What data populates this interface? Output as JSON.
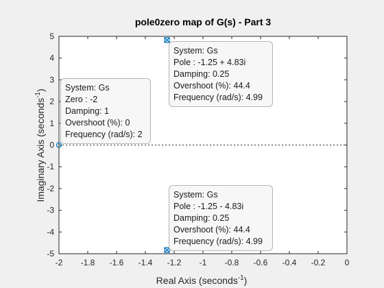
{
  "chart_data": {
    "type": "scatter",
    "title": "pole0zero map of G(s) - Part 3",
    "xlabel_main": "Real Axis (seconds",
    "xlabel_sup": "-1",
    "xlabel_end": ")",
    "ylabel_main": "Imaginary Axis (seconds",
    "ylabel_sup": "-1",
    "ylabel_end": ")",
    "xlim": [
      -2,
      0
    ],
    "ylim": [
      -5,
      5
    ],
    "xticks": [
      -2,
      -1.8,
      -1.6,
      -1.4,
      -1.2,
      -1,
      -0.8,
      -0.6,
      -0.4,
      -0.2,
      0
    ],
    "yticks": [
      -5,
      -4,
      -3,
      -2,
      -1,
      0,
      1,
      2,
      3,
      4,
      5
    ],
    "xtick_labels": [
      "-2",
      "-1.8",
      "-1.6",
      "-1.4",
      "-1.2",
      "-1",
      "-0.8",
      "-0.6",
      "-0.4",
      "-0.2",
      "0"
    ],
    "ytick_labels": [
      "-5",
      "-4",
      "-3",
      "-2",
      "-1",
      "0",
      "1",
      "2",
      "3",
      "4",
      "5"
    ],
    "grid": false,
    "marker_color": "#0072bd",
    "series": [
      {
        "kind": "pole",
        "points": [
          {
            "x": -1.25,
            "y": 4.83
          },
          {
            "x": -1.25,
            "y": -4.83
          }
        ]
      },
      {
        "kind": "zero",
        "points": [
          {
            "x": -2,
            "y": 0
          }
        ]
      }
    ],
    "datatips": [
      {
        "lines": [
          "System: Gs",
          "Pole : -1.25 + 4.83i",
          "Damping: 0.25",
          "Overshoot (%): 44.4",
          "Frequency (rad/s): 4.99"
        ]
      },
      {
        "lines": [
          "System: Gs",
          "Zero : -2",
          "Damping: 1",
          "Overshoot (%): 0",
          "Frequency (rad/s): 2"
        ]
      },
      {
        "lines": [
          "System: Gs",
          "Pole : -1.25 - 4.83i",
          "Damping: 0.25",
          "Overshoot (%): 44.4",
          "Frequency (rad/s): 4.99"
        ]
      }
    ]
  }
}
